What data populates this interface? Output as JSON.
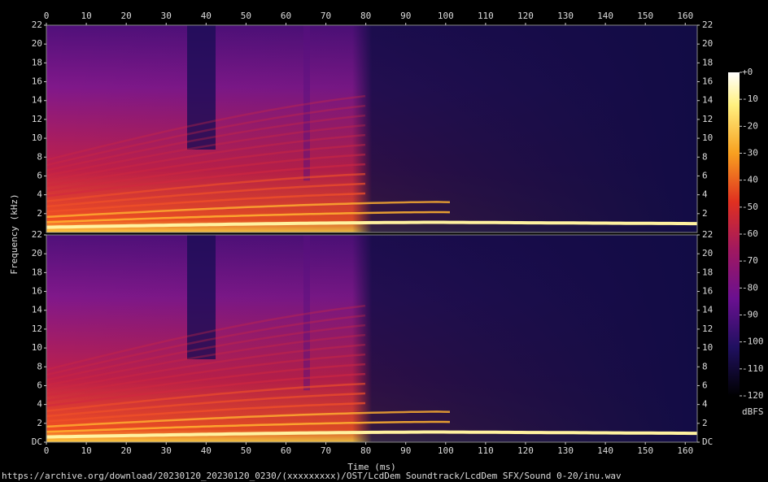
{
  "chart_data": {
    "type": "spectrogram",
    "x_label": "Time (ms)",
    "y_label": "Frequency (kHz)",
    "xlim": [
      0,
      163
    ],
    "xticks": [
      0,
      10,
      20,
      30,
      40,
      50,
      60,
      70,
      80,
      90,
      100,
      110,
      120,
      130,
      140,
      150,
      160
    ],
    "ylim": [
      0,
      22
    ],
    "channels": [
      {
        "yticks": [
          2,
          4,
          6,
          8,
          10,
          12,
          14,
          16,
          18,
          20,
          22
        ]
      },
      {
        "yticks": [
          {
            "value": 0,
            "label": "DC"
          },
          2,
          4,
          6,
          8,
          10,
          12,
          14,
          16,
          18,
          20,
          22
        ]
      }
    ],
    "colorbar": {
      "label": "dBFS",
      "lim": [
        -120,
        0
      ],
      "ticks": [
        {
          "value": 0,
          "label": "+0"
        },
        -10,
        -20,
        -30,
        -40,
        -50,
        -60,
        -70,
        -80,
        -90,
        -100,
        -110,
        -120
      ]
    },
    "source": "https://archive.org/download/20230120_20230120_0230/(xxxxxxxxx)/OST/LcdDem Soundtrack/LcdDem SFX/Sound 0-20/inu.wav"
  }
}
